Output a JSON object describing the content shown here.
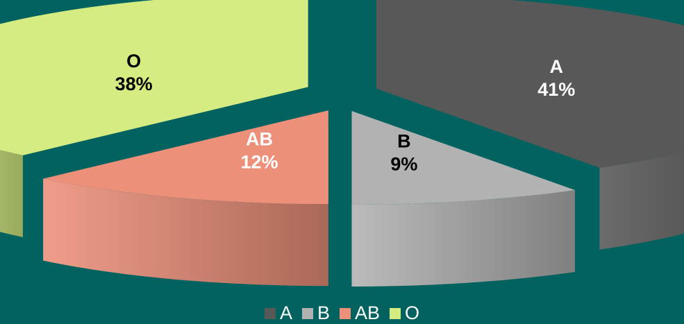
{
  "chart_data": {
    "type": "pie",
    "style": "3d-exploded",
    "categories": [
      "A",
      "B",
      "AB",
      "O"
    ],
    "values": [
      41,
      9,
      12,
      38
    ],
    "data_labels": [
      "41%",
      "9%",
      "12%",
      "38%"
    ],
    "title": "",
    "legend": {
      "position": "bottom",
      "entries": [
        "A",
        "B",
        "AB",
        "O"
      ]
    },
    "colors": {
      "A": "#585858",
      "B": "#b2b2b2",
      "AB": "#ed907a",
      "O": "#d4ec82"
    },
    "label_colors": {
      "A": "#ffffff",
      "B": "#000000",
      "AB": "#ffffff",
      "O": "#000000"
    },
    "background": "#02625f"
  }
}
